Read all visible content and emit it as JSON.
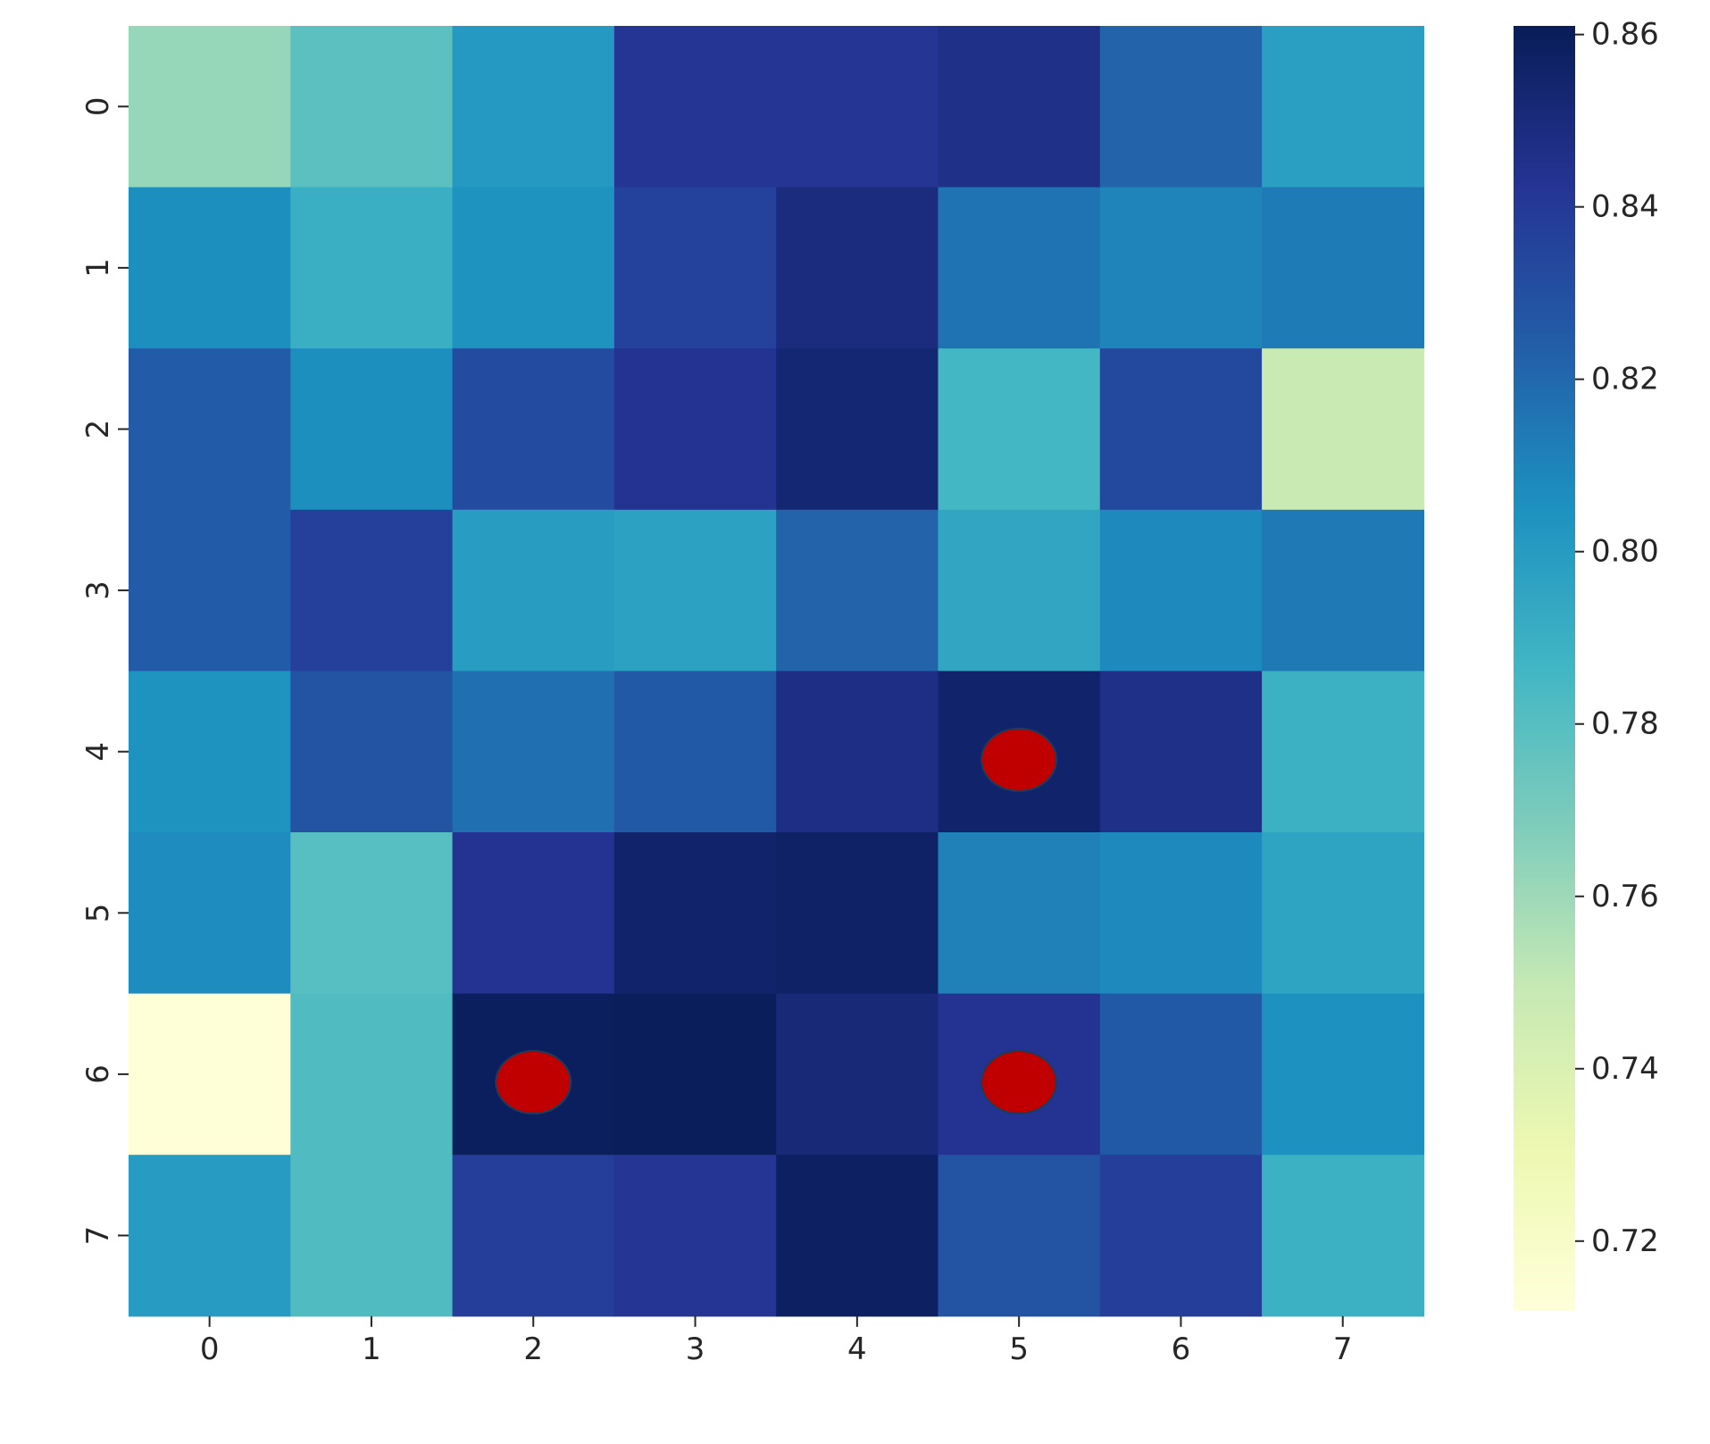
{
  "chart_data": {
    "type": "heatmap",
    "title": "",
    "xlabel": "",
    "ylabel": "",
    "x_categories": [
      "0",
      "1",
      "2",
      "3",
      "4",
      "5",
      "6",
      "7"
    ],
    "y_categories": [
      "0",
      "1",
      "2",
      "3",
      "4",
      "5",
      "6",
      "7"
    ],
    "values": [
      [
        0.762,
        0.778,
        0.801,
        0.842,
        0.842,
        0.846,
        0.822,
        0.798
      ],
      [
        0.806,
        0.79,
        0.804,
        0.836,
        0.849,
        0.816,
        0.81,
        0.813
      ],
      [
        0.825,
        0.806,
        0.832,
        0.843,
        0.853,
        0.786,
        0.833,
        0.748
      ],
      [
        0.825,
        0.837,
        0.799,
        0.797,
        0.822,
        0.795,
        0.808,
        0.814
      ],
      [
        0.804,
        0.828,
        0.817,
        0.826,
        0.847,
        0.855,
        0.846,
        0.789
      ],
      [
        0.807,
        0.78,
        0.843,
        0.855,
        0.857,
        0.811,
        0.808,
        0.796
      ],
      [
        0.713,
        0.782,
        0.859,
        0.86,
        0.851,
        0.843,
        0.826,
        0.805
      ],
      [
        0.8,
        0.782,
        0.838,
        0.842,
        0.858,
        0.828,
        0.838,
        0.789
      ]
    ],
    "colorbar": {
      "colormap": "YlGnBu",
      "min": 0.712,
      "max": 0.861,
      "ticks": [
        "0.72",
        "0.74",
        "0.76",
        "0.78",
        "0.80",
        "0.82",
        "0.84",
        "0.86"
      ],
      "tick_values": [
        0.72,
        0.74,
        0.76,
        0.78,
        0.8,
        0.82,
        0.84,
        0.86
      ]
    },
    "markers": [
      {
        "row": 4,
        "col": 5,
        "color": "#c00000"
      },
      {
        "row": 6,
        "col": 2,
        "color": "#c00000"
      },
      {
        "row": 6,
        "col": 5,
        "color": "#c00000"
      }
    ],
    "grid": false
  }
}
